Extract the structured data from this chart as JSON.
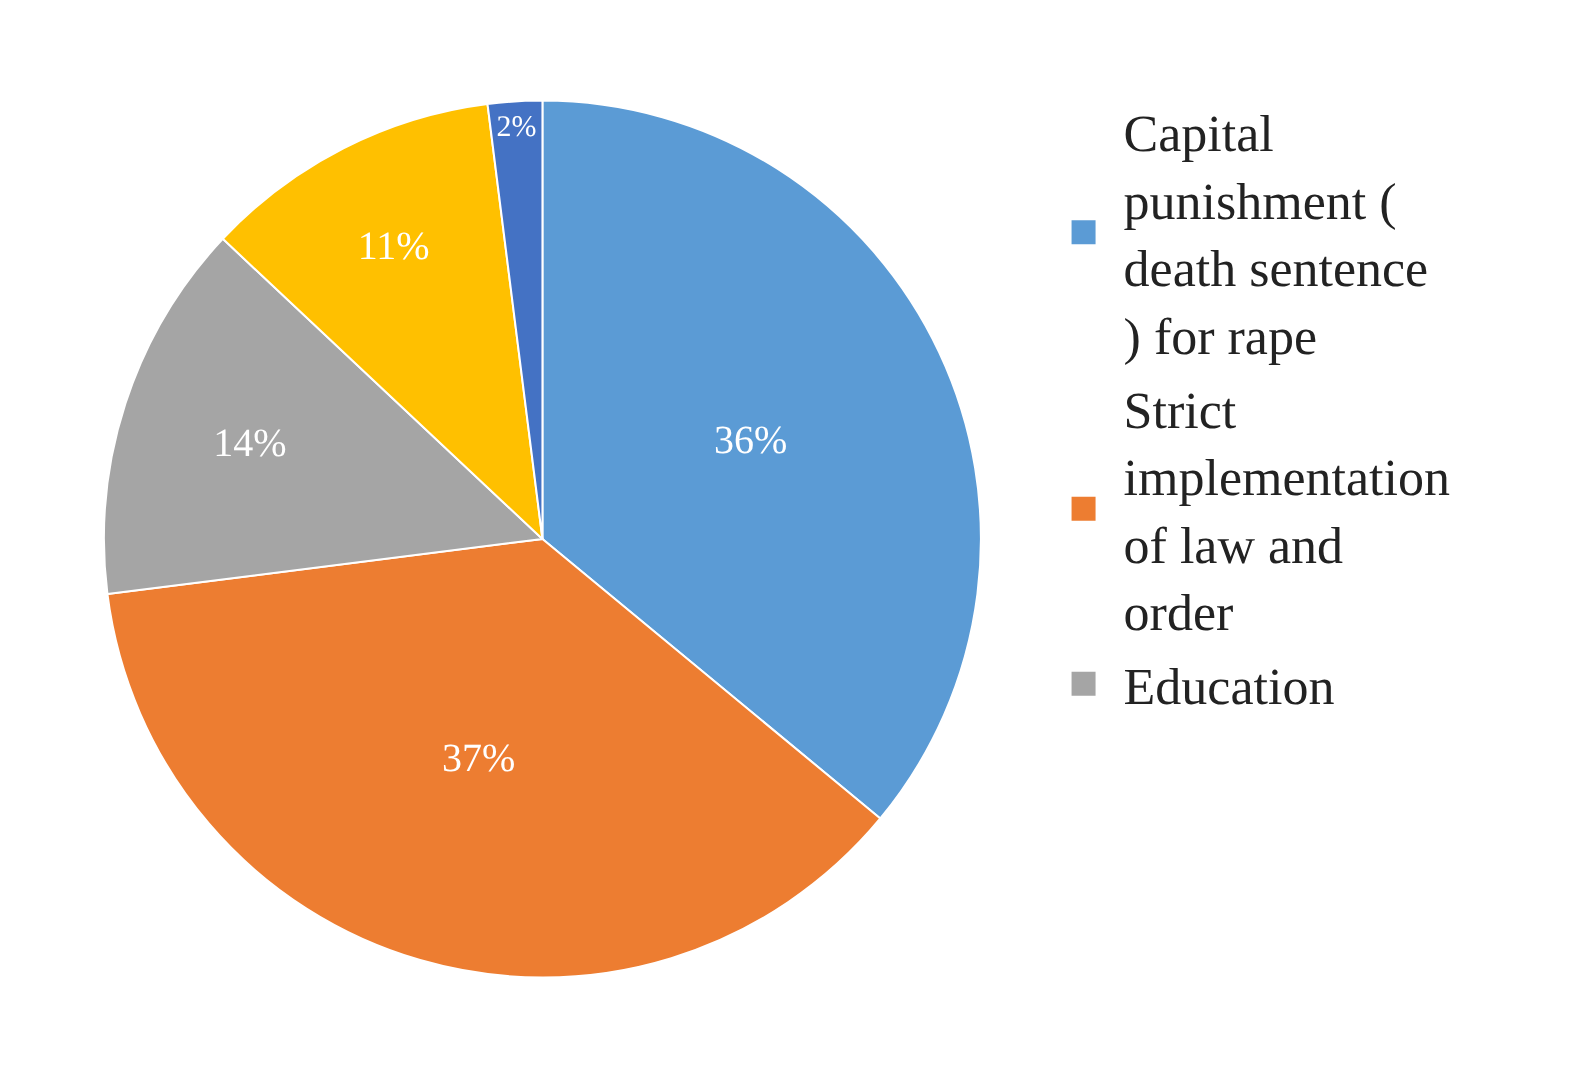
{
  "chart_data": {
    "type": "pie",
    "categories": [
      "Capital punishment ( death sentence ) for rape",
      "Strict implementation of law and order",
      "Education",
      null,
      null
    ],
    "values": [
      36,
      37,
      14,
      11,
      2
    ],
    "colors": [
      "#5b9bd5",
      "#ed7d31",
      "#a5a5a5",
      "#ffc000",
      "#4472c4"
    ],
    "value_labels": [
      "36%",
      "37%",
      "14%",
      "11%",
      "2%"
    ],
    "legend": "right"
  }
}
